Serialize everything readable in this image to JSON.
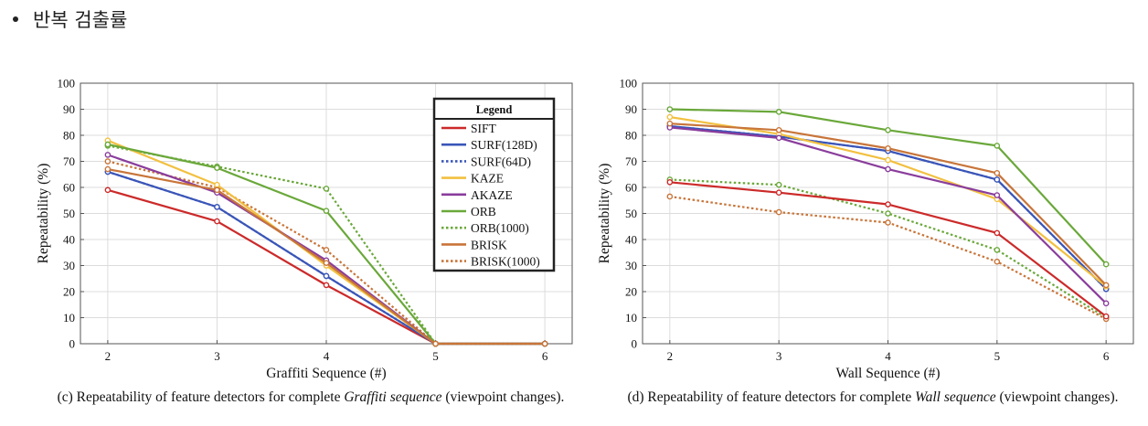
{
  "heading": {
    "text": "반복 검출률"
  },
  "series_styles": {
    "SIFT": {
      "color": "#cc2a2a",
      "dash": false
    },
    "SURF(128D)": {
      "color": "#3a55b8",
      "dash": false
    },
    "SURF(64D)": {
      "color": "#3a55b8",
      "dash": true
    },
    "KAZE": {
      "color": "#f2c040",
      "dash": false
    },
    "AKAZE": {
      "color": "#8a3d9c",
      "dash": false
    },
    "ORB": {
      "color": "#6aa83a",
      "dash": false
    },
    "ORB(1000)": {
      "color": "#6aa83a",
      "dash": true
    },
    "BRISK": {
      "color": "#c8753a",
      "dash": false
    },
    "BRISK(1000)": {
      "color": "#c8753a",
      "dash": true
    }
  },
  "chart_data": [
    {
      "type": "line",
      "id": "graffiti",
      "title": "",
      "xlabel": "Graffiti Sequence (#)",
      "ylabel": "Repeatability (%)",
      "x": [
        2,
        3,
        4,
        5,
        6
      ],
      "xlim": [
        1.75,
        6.25
      ],
      "ylim": [
        0,
        100
      ],
      "yticks": [
        0,
        10,
        20,
        30,
        40,
        50,
        60,
        70,
        80,
        90,
        100
      ],
      "legend": {
        "title": "Legend",
        "placement": "top-right"
      },
      "legend_items": [
        "SIFT",
        "SURF(128D)",
        "SURF(64D)",
        "KAZE",
        "AKAZE",
        "ORB",
        "ORB(1000)",
        "BRISK",
        "BRISK(1000)"
      ],
      "series": [
        {
          "name": "SIFT",
          "values": [
            59,
            47,
            22.5,
            0,
            0
          ]
        },
        {
          "name": "SURF(128D)",
          "values": [
            66,
            52.5,
            26,
            0,
            0
          ]
        },
        {
          "name": "SURF(64D)",
          "values": [
            66,
            52.5,
            26,
            0,
            0
          ]
        },
        {
          "name": "KAZE",
          "values": [
            78,
            61,
            30,
            0,
            0
          ]
        },
        {
          "name": "AKAZE",
          "values": [
            72.5,
            58,
            32,
            0,
            0
          ]
        },
        {
          "name": "ORB",
          "values": [
            76.5,
            67.5,
            51,
            0,
            0
          ]
        },
        {
          "name": "ORB(1000)",
          "values": [
            76,
            68,
            59.5,
            0,
            0
          ]
        },
        {
          "name": "BRISK",
          "values": [
            67,
            59,
            31,
            0,
            0
          ]
        },
        {
          "name": "BRISK(1000)",
          "values": [
            70,
            60,
            36,
            0,
            0
          ]
        }
      ],
      "caption_parts": [
        "(c) Repeatability of feature detectors for complete ",
        "Graffiti sequence",
        " (viewpoint changes)."
      ]
    },
    {
      "type": "line",
      "id": "wall",
      "title": "",
      "xlabel": "Wall Sequence (#)",
      "ylabel": "Repeatability (%)",
      "x": [
        2,
        3,
        4,
        5,
        6
      ],
      "xlim": [
        1.75,
        6.25
      ],
      "ylim": [
        0,
        100
      ],
      "yticks": [
        0,
        10,
        20,
        30,
        40,
        50,
        60,
        70,
        80,
        90,
        100
      ],
      "series": [
        {
          "name": "SIFT",
          "values": [
            62,
            58,
            53.5,
            42.5,
            10.5
          ]
        },
        {
          "name": "SURF(128D)",
          "values": [
            83.5,
            79.5,
            74,
            63,
            21
          ]
        },
        {
          "name": "SURF(64D)",
          "values": [
            83.5,
            79.5,
            74,
            63,
            21
          ]
        },
        {
          "name": "KAZE",
          "values": [
            87,
            80.5,
            70.5,
            55.5,
            22
          ]
        },
        {
          "name": "AKAZE",
          "values": [
            83,
            79,
            67,
            57,
            15.5
          ]
        },
        {
          "name": "ORB",
          "values": [
            90,
            89,
            82,
            76,
            30.5
          ]
        },
        {
          "name": "ORB(1000)",
          "values": [
            63,
            61,
            50,
            36,
            10
          ]
        },
        {
          "name": "BRISK",
          "values": [
            84.5,
            82,
            75,
            65.5,
            22.5
          ]
        },
        {
          "name": "BRISK(1000)",
          "values": [
            56.5,
            50.5,
            46.5,
            31.5,
            9.5
          ]
        }
      ],
      "caption_parts": [
        "(d) Repeatability of feature detectors for complete ",
        "Wall sequence",
        " (viewpoint changes)."
      ]
    }
  ]
}
